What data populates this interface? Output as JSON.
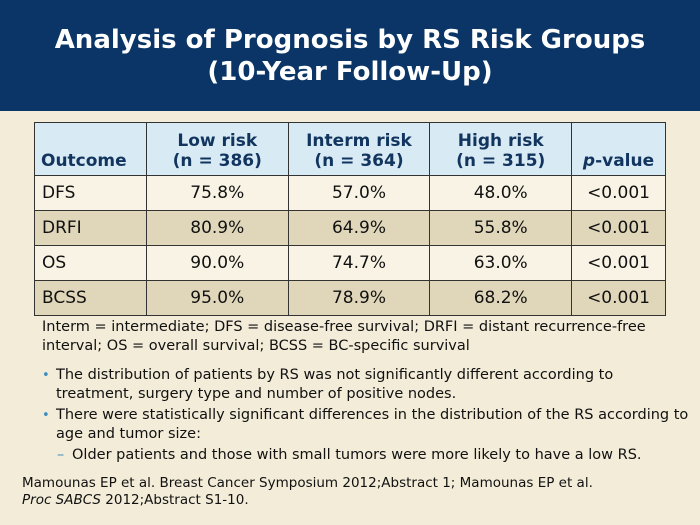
{
  "title": {
    "line1": "Analysis of Prognosis by RS Risk Groups",
    "line2": "(10-Year Follow-Up)"
  },
  "table": {
    "headers": {
      "outcome": "Outcome",
      "low": [
        "Low risk",
        "(n = 386)"
      ],
      "interm": [
        "Interm risk",
        "(n = 364)"
      ],
      "high": [
        "High risk",
        "(n = 315)"
      ],
      "pvalue_p": "p",
      "pvalue_rest": "-value"
    },
    "rows": [
      {
        "outcome": "DFS",
        "low": "75.8%",
        "interm": "57.0%",
        "high": "48.0%",
        "p": "<0.001"
      },
      {
        "outcome": "DRFI",
        "low": "80.9%",
        "interm": "64.9%",
        "high": "55.8%",
        "p": "<0.001"
      },
      {
        "outcome": "OS",
        "low": "90.0%",
        "interm": "74.7%",
        "high": "63.0%",
        "p": "<0.001"
      },
      {
        "outcome": "BCSS",
        "low": "95.0%",
        "interm": "78.9%",
        "high": "68.2%",
        "p": "<0.001"
      }
    ]
  },
  "footnote": "Interm = intermediate; DFS = disease-free survival; DRFI = distant recurrence-free interval; OS = overall survival; BCSS = BC-specific survival",
  "bullets": [
    "The distribution of patients by RS was not significantly different according to treatment, surgery type and number of positive nodes.",
    "There were statistically significant differences in the distribution of the RS according to age and tumor size:"
  ],
  "sub_bullet": "Older patients and those with small tumors were more likely to have a low RS.",
  "references": {
    "line1": "Mamounas EP et al. Breast Cancer Symposium 2012;Abstract 1; Mamounas EP et al.",
    "line2_italic": "Proc SABCS",
    "line2_rest": " 2012;Abstract S1-10."
  },
  "colors": {
    "header_bg": "#0a3566",
    "table_header_bg": "#d8eaf4",
    "row_light": "#f8f3e4",
    "row_dark": "#e0d6ba",
    "bullet": "#3d8fc0"
  }
}
